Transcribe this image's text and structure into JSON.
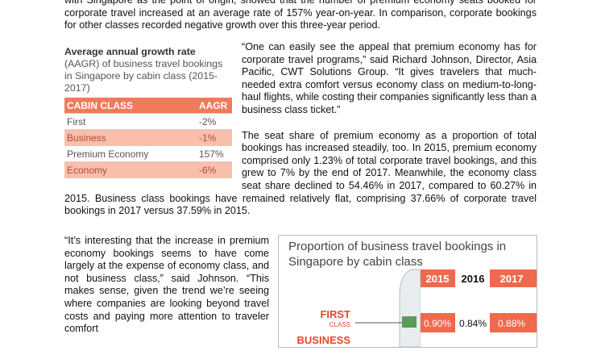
{
  "intro": "with Singapore as the point of origin, showed that the number of premium economy seats booked for corporate travel increased at an average rate of 157% year-on-year. In comparison, corporate bookings for other classes recorded negative growth over this three-year period.",
  "sidebar": {
    "title": "Average annual growth rate",
    "subtitle": "(AAGR) of business travel bookings in Singapore by cabin class (2015-2017)",
    "table": {
      "header": [
        "CABIN CLASS",
        "AAGR"
      ],
      "rows": [
        [
          "First",
          "-2%"
        ],
        [
          "Business",
          "-1%"
        ],
        [
          "Premium Economy",
          "157%"
        ],
        [
          "Economy",
          "-6%"
        ]
      ]
    }
  },
  "paragraphs": [
    "“One can easily see the appeal that premium economy has for corporate travel programs,” said Richard Johnson, Director, Asia Pacific, CWT Solutions Group. “It gives travelers that much-needed extra comfort versus economy class on medium-to-long-haul flights, while costing their companies significantly less than a business class ticket.”",
    "The seat share of premium economy as a proportion of total bookings has increased steadily, too. In 2015, premium economy comprised only 1.23% of total corporate travel bookings, and this grew to 7% by the end of 2017. Meanwhile, the economy class seat share declined to 54.46% in 2017, compared to 60.27% in 2015. Business class bookings have remained relatively flat, comprising 37.66% of corporate travel bookings in 2017 versus 37.59% in 2015.",
    "“It’s interesting that the increase in premium economy bookings seems to have come largely at the expense of economy class, and not business class,” said Johnson. “This makes sense, given the trend we’re seeing where companies are looking beyond travel costs and paying more attention to traveler comfort"
  ],
  "chart": {
    "title": "Proportion of business travel bookings in Singapore by cabin class",
    "columns": [
      "2015",
      "2016",
      "2017"
    ],
    "rows": [
      {
        "label": "FIRST",
        "sublabel": "CLASS",
        "values": [
          "0.90%",
          "0.84%",
          "0.88%"
        ]
      },
      {
        "label": "BUSINESS"
      }
    ]
  }
}
